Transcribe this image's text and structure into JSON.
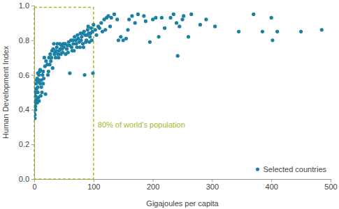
{
  "chart_data": {
    "type": "scatter",
    "x_label": "Gigajoules per capita",
    "y_label": "Human Development Index",
    "xlim": [
      0,
      500
    ],
    "ylim": [
      0,
      1
    ],
    "xticks": [
      0,
      100,
      200,
      300,
      400,
      500
    ],
    "yticks": [
      {
        "value": 0,
        "label": "0.0"
      },
      0.2,
      0.4,
      0.6,
      0.8,
      {
        "value": 1,
        "label": "1.0"
      }
    ],
    "grid": false,
    "legend": "bottom-right",
    "annotations": [
      {
        "text": "80% of world's population",
        "x0": 0,
        "x1": 100,
        "y0": 0,
        "y1": 0.99,
        "color": "#a6b82a",
        "line_style": "dashed"
      }
    ],
    "x": [
      1,
      1,
      2,
      2,
      3,
      3,
      4,
      2,
      5,
      4,
      6,
      3,
      7,
      5,
      8,
      9,
      6,
      10,
      12,
      14,
      15,
      11,
      13,
      16,
      8,
      10,
      18,
      20,
      22,
      17,
      25,
      24,
      27,
      30,
      28,
      32,
      35,
      33,
      38,
      40,
      42,
      44,
      46,
      48,
      50,
      52,
      36,
      55,
      58,
      60,
      62,
      64,
      66,
      68,
      70,
      72,
      74,
      76,
      78,
      80,
      82,
      84,
      86,
      88,
      90,
      92,
      94,
      96,
      98,
      99,
      85,
      60,
      100,
      103,
      105,
      108,
      110,
      113,
      118,
      122,
      125,
      130,
      135,
      140,
      142,
      146,
      150,
      155,
      160,
      165,
      170,
      175,
      185,
      195,
      200,
      205,
      210,
      215,
      220,
      230,
      235,
      240,
      242,
      245,
      250,
      260,
      265,
      280,
      290,
      305,
      345,
      370,
      385,
      400,
      402,
      410,
      450,
      485,
      120,
      128,
      115,
      158,
      188,
      252,
      0,
      1,
      2,
      3,
      4,
      5,
      6,
      7,
      9,
      12,
      15,
      19,
      23,
      26,
      29,
      31,
      34,
      37,
      39,
      41,
      43,
      45,
      47,
      49,
      53,
      56,
      57,
      63,
      65,
      67,
      71,
      73,
      77,
      79,
      81,
      83,
      87,
      89,
      91,
      93,
      95,
      97
    ],
    "series": [
      {
        "name": "Selected countries",
        "color": "#1c80a4",
        "marker": "circle",
        "values": [
          0.35,
          0.37,
          0.4,
          0.42,
          0.44,
          0.45,
          0.46,
          0.48,
          0.5,
          0.52,
          0.53,
          0.55,
          0.56,
          0.58,
          0.6,
          0.62,
          0.5,
          0.55,
          0.57,
          0.6,
          0.62,
          0.48,
          0.5,
          0.58,
          0.45,
          0.63,
          0.65,
          0.68,
          0.66,
          0.7,
          0.7,
          0.62,
          0.72,
          0.74,
          0.68,
          0.75,
          0.73,
          0.78,
          0.76,
          0.72,
          0.74,
          0.75,
          0.77,
          0.73,
          0.76,
          0.78,
          0.7,
          0.75,
          0.79,
          0.77,
          0.8,
          0.74,
          0.78,
          0.82,
          0.8,
          0.76,
          0.81,
          0.79,
          0.84,
          0.82,
          0.78,
          0.85,
          0.83,
          0.8,
          0.86,
          0.84,
          0.82,
          0.87,
          0.85,
          0.61,
          0.6,
          0.61,
          0.89,
          0.86,
          0.83,
          0.88,
          0.87,
          0.9,
          0.92,
          0.93,
          0.94,
          0.93,
          0.95,
          0.92,
          0.8,
          0.82,
          0.8,
          0.81,
          0.92,
          0.94,
          0.9,
          0.95,
          0.94,
          0.79,
          0.92,
          0.93,
          0.82,
          0.93,
          0.87,
          0.93,
          0.95,
          0.9,
          0.71,
          0.88,
          0.92,
          0.82,
          0.95,
          0.89,
          0.92,
          0.88,
          0.85,
          0.95,
          0.85,
          0.93,
          0.8,
          0.85,
          0.85,
          0.86,
          0.86,
          0.88,
          0.85,
          0.86,
          0.91,
          0.94,
          0.38,
          0.42,
          0.5,
          0.52,
          0.57,
          0.44,
          0.61,
          0.47,
          0.57,
          0.53,
          0.55,
          0.49,
          0.6,
          0.66,
          0.7,
          0.64,
          0.72,
          0.74,
          0.78,
          0.7,
          0.78,
          0.72,
          0.75,
          0.78,
          0.72,
          0.77,
          0.73,
          0.76,
          0.8,
          0.74,
          0.78,
          0.83,
          0.76,
          0.8,
          0.84,
          0.76,
          0.79,
          0.83,
          0.88,
          0.79,
          0.84,
          0.8
        ]
      }
    ]
  }
}
